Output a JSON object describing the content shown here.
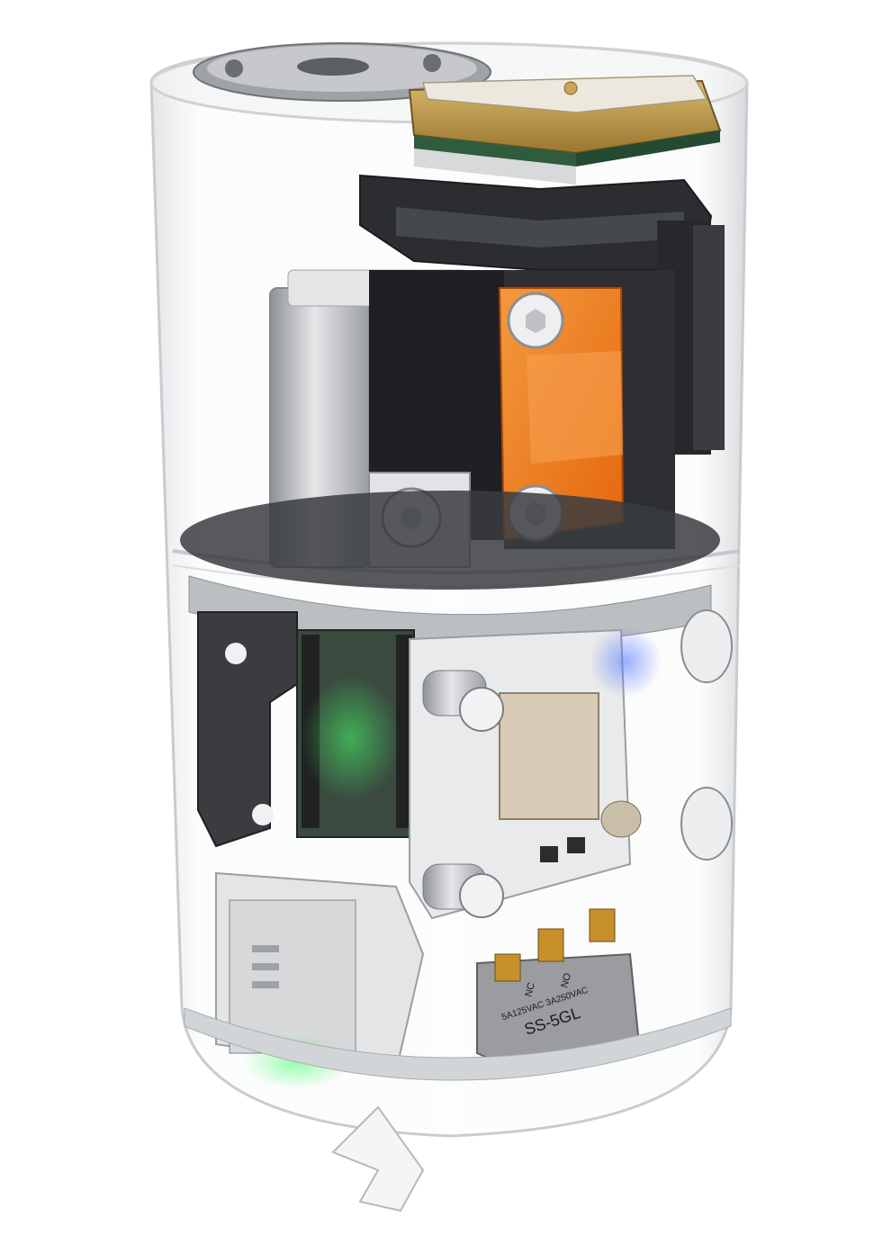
{
  "image": {
    "subject": "transparent cylindrical enclosure rendering",
    "background": "#ffffff"
  },
  "colors": {
    "acrylic": "#d9dcdf",
    "orange_bracket": "#f07a1a",
    "gold_pad": "#b8933c",
    "pcb_green": "#2e5a3a",
    "metal": "#b9bcc0",
    "dark_frame": "#2b2d30",
    "switch_body": "#9a9c9f",
    "terminal": "#c8902a"
  },
  "switch": {
    "model": "SS-5GL",
    "rating": "5A125VAC 3A250VAC",
    "pin_nc": "NC",
    "pin_no": "NO"
  }
}
